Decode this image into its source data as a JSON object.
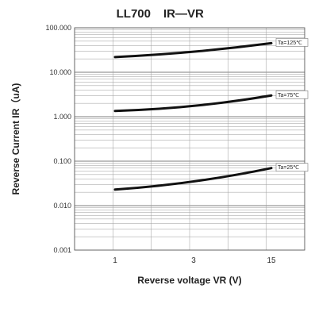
{
  "chart_data": {
    "type": "line",
    "title": "LL700",
    "subtitle": "IR—VR",
    "xlabel": "Reverse voltage VR (V)",
    "ylabel": "Reverse Current IR（uA)",
    "x_ticks": [
      "1",
      "3",
      "15"
    ],
    "y_scale": "log",
    "y_ticks": [
      "100.000",
      "10.000",
      "1.000",
      "0.100",
      "0.010",
      "0.001"
    ],
    "ylim": [
      0.001,
      100
    ],
    "grid": true,
    "series": [
      {
        "name": "Ta=125℃",
        "x": [
          1,
          3,
          15
        ],
        "y": [
          22,
          29,
          45
        ]
      },
      {
        "name": "Ta=75℃",
        "x": [
          1,
          3,
          15
        ],
        "y": [
          1.35,
          1.75,
          3.0
        ]
      },
      {
        "name": "Ta=25℃",
        "x": [
          1,
          3,
          15
        ],
        "y": [
          0.023,
          0.035,
          0.07
        ]
      }
    ]
  }
}
